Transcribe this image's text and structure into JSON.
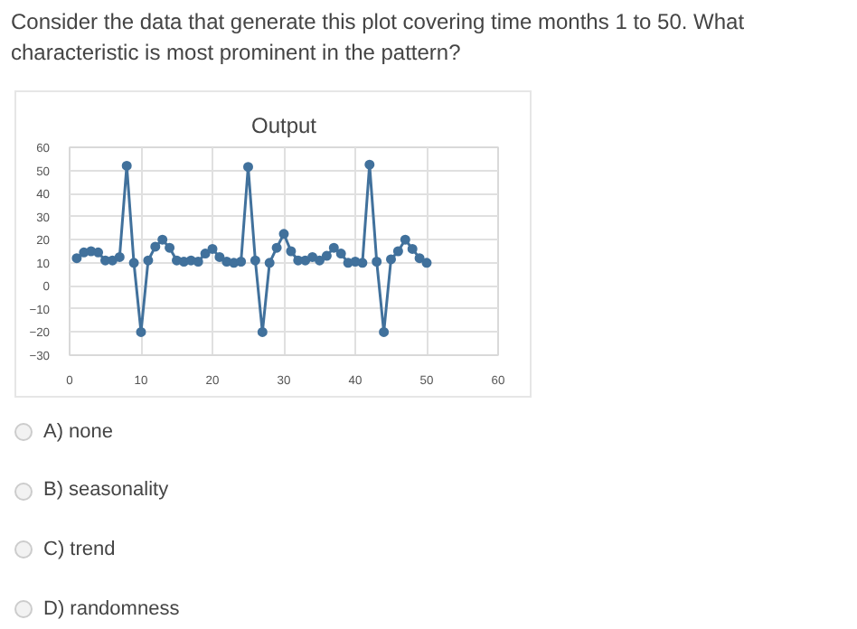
{
  "chart_data": {
    "type": "line",
    "title": "Output",
    "x": [
      1,
      2,
      3,
      4,
      5,
      6,
      7,
      8,
      9,
      10,
      11,
      12,
      13,
      14,
      15,
      16,
      17,
      18,
      19,
      20,
      21,
      22,
      23,
      24,
      25,
      26,
      27,
      28,
      29,
      30,
      31,
      32,
      33,
      34,
      35,
      36,
      37,
      38,
      39,
      40,
      41,
      42,
      43,
      44,
      45,
      46,
      47,
      48,
      49,
      50
    ],
    "series": [
      {
        "color": "#41719c",
        "values": [
          12,
          14.5,
          15,
          14.5,
          11,
          11,
          12.5,
          52,
          10,
          -20,
          11,
          17,
          20,
          16.5,
          11,
          10.5,
          11,
          10.5,
          14,
          16,
          12.5,
          10.5,
          10,
          10.5,
          51.5,
          11,
          -20,
          10,
          16.5,
          22.5,
          15,
          11,
          11,
          12.5,
          11,
          13,
          16.5,
          14,
          10,
          10.5,
          10,
          52.5,
          10.5,
          -20,
          11.5,
          15,
          20,
          16,
          12,
          10
        ]
      }
    ],
    "xlim": [
      0,
      60
    ],
    "ylim": [
      -30,
      60
    ],
    "xticks": [
      0,
      10,
      20,
      30,
      40,
      50,
      60
    ],
    "yticks": [
      -30,
      -20,
      -10,
      0,
      10,
      20,
      30,
      40,
      50,
      60
    ],
    "grid": true,
    "marker": "circle",
    "line_style": "solid",
    "annotations": [
      "Consider the data that generate this plot covering time months 1 to 50. What characteristic is most prominent in the pattern?",
      "A) none",
      "B) seasonality",
      "C) trend",
      "D) randomness"
    ]
  }
}
